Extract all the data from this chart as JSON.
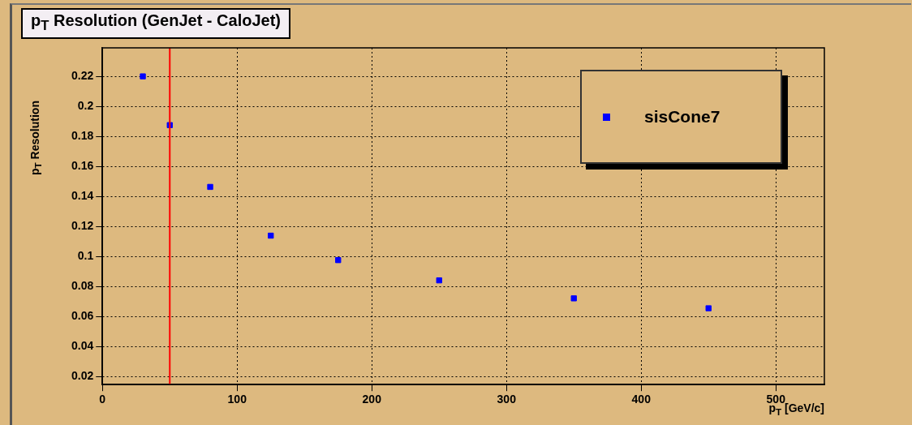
{
  "chart_data": {
    "type": "scatter",
    "title": "p$_{T}$ Resolution (GenJet - CaloJet)",
    "xlabel": "p$_{T}$ [GeV/c]",
    "ylabel": "p$_{T}$ Resolution",
    "series": [
      {
        "name": "sisCone7",
        "color": "#0000ff",
        "x": [
          30,
          50,
          80,
          125,
          175,
          250,
          350,
          450
        ],
        "values": [
          0.22,
          0.1875,
          0.1463,
          0.1138,
          0.0975,
          0.084,
          0.072,
          0.0654
        ]
      }
    ],
    "xlim": [
      0,
      536
    ],
    "xticks": [
      0,
      100,
      200,
      300,
      400,
      500
    ],
    "ylim": [
      0.0145,
      0.239
    ],
    "yticks": [
      {
        "value": 0.02,
        "label": "0.02"
      },
      {
        "value": 0.04,
        "label": "0.04"
      },
      {
        "value": 0.06,
        "label": "0.06"
      },
      {
        "value": 0.08,
        "label": "0.08"
      },
      {
        "value": 0.1,
        "label": "0.1"
      },
      {
        "value": 0.12,
        "label": "0.12"
      },
      {
        "value": 0.14,
        "label": "0.14"
      },
      {
        "value": 0.16,
        "label": "0.16"
      },
      {
        "value": 0.18,
        "label": "0.18"
      },
      {
        "value": 0.2,
        "label": "0.2"
      },
      {
        "value": 0.22,
        "label": "0.22"
      }
    ],
    "ref_lines": [
      {
        "axis": "x",
        "value": 50,
        "color": "#ff0000"
      }
    ],
    "grid": true,
    "legend": "top right",
    "marker": "square"
  }
}
